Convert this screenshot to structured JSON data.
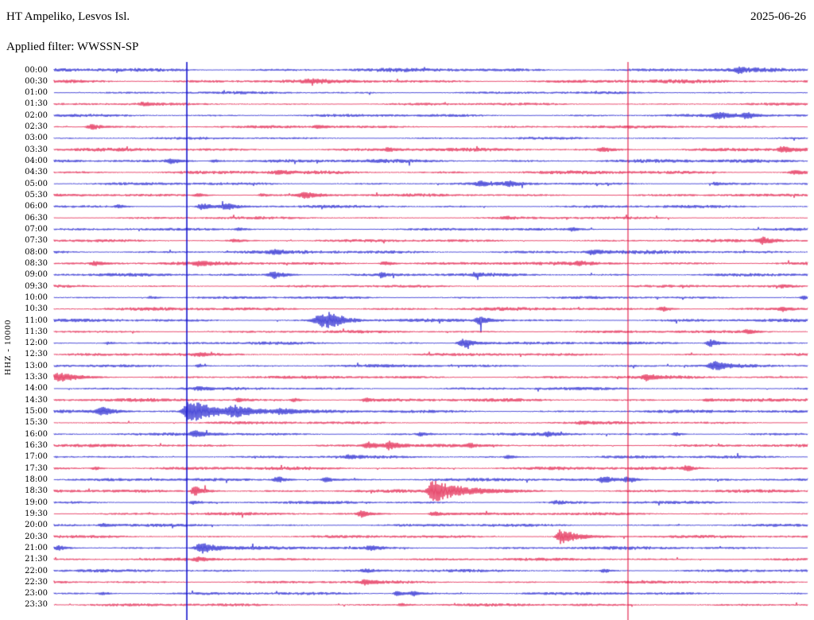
{
  "header": {
    "station_title": "HT Ampeliko, Lesvos Isl.",
    "filter_label": "Applied filter: WWSSN-SP",
    "date": "2025-06-26"
  },
  "side_label": "HHZ - 10000",
  "chart_data": {
    "type": "line",
    "subtype": "helicorder-seismogram",
    "title": "HT Ampeliko, Lesvos Isl.",
    "filter": "WWSSN-SP",
    "date": "2025-06-26",
    "channel_scale_label": "HHZ - 10000",
    "row_interval_minutes": 30,
    "colors": {
      "blue": "#1414cc",
      "red": "#e01240"
    },
    "vertical_markers": [
      {
        "t": 0.1762,
        "color": "#1414cc",
        "width": 1.6
      },
      {
        "t": 0.7616,
        "color": "#e01240",
        "width": 1.1
      }
    ],
    "rows": [
      {
        "time": "00:00",
        "color": "blue",
        "noise": 1.6,
        "events": [
          {
            "t": 0.909,
            "a": 3,
            "w": 5,
            "d": 10
          }
        ]
      },
      {
        "time": "00:30",
        "color": "red",
        "noise": 1.6,
        "events": [
          {
            "t": 0.34,
            "a": 1.5,
            "w": 8,
            "d": 14
          }
        ]
      },
      {
        "time": "01:00",
        "color": "blue",
        "noise": 1.1,
        "events": []
      },
      {
        "time": "01:30",
        "color": "red",
        "noise": 1.1,
        "events": [
          {
            "t": 0.118,
            "a": 2,
            "w": 5,
            "d": 10
          }
        ]
      },
      {
        "time": "02:00",
        "color": "blue",
        "noise": 1.2,
        "events": [
          {
            "t": 0.883,
            "a": 4,
            "w": 8,
            "d": 16
          },
          {
            "t": 0.92,
            "a": 3.5,
            "w": 6,
            "d": 12
          }
        ]
      },
      {
        "time": "02:30",
        "color": "red",
        "noise": 1.2,
        "events": [
          {
            "t": 0.05,
            "a": 4,
            "w": 6,
            "d": 14
          },
          {
            "t": 0.35,
            "a": 2,
            "w": 5,
            "d": 10
          }
        ]
      },
      {
        "time": "03:00",
        "color": "blue",
        "noise": 1.0,
        "events": []
      },
      {
        "time": "03:30",
        "color": "red",
        "noise": 1.4,
        "events": [
          {
            "t": 0.445,
            "a": 2,
            "w": 6,
            "d": 12
          },
          {
            "t": 0.73,
            "a": 2.5,
            "w": 8,
            "d": 14
          },
          {
            "t": 0.967,
            "a": 4,
            "w": 6,
            "d": 14
          }
        ]
      },
      {
        "time": "04:00",
        "color": "blue",
        "noise": 1.5,
        "events": [
          {
            "t": 0.155,
            "a": 3,
            "w": 6,
            "d": 14
          },
          {
            "t": 0.213,
            "a": 2,
            "w": 5,
            "d": 10
          }
        ]
      },
      {
        "time": "04:30",
        "color": "red",
        "noise": 1.5,
        "events": [
          {
            "t": 0.297,
            "a": 2,
            "w": 6,
            "d": 10
          },
          {
            "t": 0.983,
            "a": 2.5,
            "w": 6,
            "d": 12
          }
        ]
      },
      {
        "time": "05:00",
        "color": "blue",
        "noise": 1.2,
        "events": [
          {
            "t": 0.566,
            "a": 2.5,
            "w": 6,
            "d": 10
          },
          {
            "t": 0.603,
            "a": 3,
            "w": 6,
            "d": 12
          },
          {
            "t": 0.878,
            "a": 2,
            "w": 5,
            "d": 10
          }
        ]
      },
      {
        "time": "05:30",
        "color": "red",
        "noise": 1.2,
        "events": [
          {
            "t": 0.192,
            "a": 2,
            "w": 5,
            "d": 10
          },
          {
            "t": 0.276,
            "a": 2,
            "w": 5,
            "d": 10
          },
          {
            "t": 0.334,
            "a": 4,
            "w": 10,
            "d": 18
          }
        ]
      },
      {
        "time": "06:00",
        "color": "blue",
        "noise": 1.2,
        "events": [
          {
            "t": 0.086,
            "a": 2,
            "w": 5,
            "d": 10
          },
          {
            "t": 0.197,
            "a": 4,
            "w": 6,
            "d": 12
          },
          {
            "t": 0.229,
            "a": 4,
            "w": 6,
            "d": 12
          }
        ]
      },
      {
        "time": "06:30",
        "color": "red",
        "noise": 1.1,
        "events": [
          {
            "t": 0.6,
            "a": 1.5,
            "w": 6,
            "d": 10
          }
        ]
      },
      {
        "time": "07:00",
        "color": "blue",
        "noise": 1.1,
        "events": [
          {
            "t": 0.245,
            "a": 2,
            "w": 5,
            "d": 10
          },
          {
            "t": 0.688,
            "a": 2,
            "w": 5,
            "d": 10
          }
        ]
      },
      {
        "time": "07:30",
        "color": "red",
        "noise": 1.2,
        "events": [
          {
            "t": 0.239,
            "a": 2,
            "w": 5,
            "d": 10
          },
          {
            "t": 0.941,
            "a": 4,
            "w": 8,
            "d": 14
          }
        ]
      },
      {
        "time": "08:00",
        "color": "blue",
        "noise": 1.5,
        "events": [
          {
            "t": 0.292,
            "a": 2,
            "w": 5,
            "d": 10
          },
          {
            "t": 0.714,
            "a": 3,
            "w": 6,
            "d": 12
          }
        ]
      },
      {
        "time": "08:30",
        "color": "red",
        "noise": 1.5,
        "events": [
          {
            "t": 0.055,
            "a": 2.5,
            "w": 6,
            "d": 10
          },
          {
            "t": 0.192,
            "a": 2,
            "w": 5,
            "d": 10
          },
          {
            "t": 0.44,
            "a": 3,
            "w": 7,
            "d": 12
          },
          {
            "t": 0.698,
            "a": 2,
            "w": 5,
            "d": 10
          }
        ]
      },
      {
        "time": "09:00",
        "color": "blue",
        "noise": 1.3,
        "events": [
          {
            "t": 0.292,
            "a": 5,
            "w": 7,
            "d": 14
          },
          {
            "t": 0.435,
            "a": 4,
            "w": 3,
            "d": 6
          },
          {
            "t": 0.561,
            "a": 2,
            "w": 5,
            "d": 10
          }
        ]
      },
      {
        "time": "09:30",
        "color": "red",
        "noise": 1.1,
        "events": [
          {
            "t": 0.967,
            "a": 2,
            "w": 5,
            "d": 10
          }
        ]
      },
      {
        "time": "10:00",
        "color": "blue",
        "noise": 1.1,
        "events": [
          {
            "t": 0.129,
            "a": 2,
            "w": 5,
            "d": 10
          },
          {
            "t": 0.994,
            "a": 2.5,
            "w": 4,
            "d": 8
          }
        ]
      },
      {
        "time": "10:30",
        "color": "red",
        "noise": 1.4,
        "events": [
          {
            "t": 0.809,
            "a": 3,
            "w": 6,
            "d": 10
          },
          {
            "t": 0.967,
            "a": 2.5,
            "w": 5,
            "d": 10
          }
        ]
      },
      {
        "time": "11:00",
        "color": "blue",
        "noise": 1.3,
        "events": [
          {
            "t": 0.355,
            "a": 8,
            "w": 10,
            "d": 18
          },
          {
            "t": 0.368,
            "a": 7,
            "w": 6,
            "d": 14
          },
          {
            "t": 0.566,
            "a": 5,
            "w": 6,
            "d": 12
          }
        ]
      },
      {
        "time": "11:30",
        "color": "red",
        "noise": 1.2,
        "events": [
          {
            "t": 0.92,
            "a": 2.5,
            "w": 5,
            "d": 10
          }
        ]
      },
      {
        "time": "12:00",
        "color": "blue",
        "noise": 1.2,
        "events": [
          {
            "t": 0.071,
            "a": 2,
            "w": 5,
            "d": 10
          },
          {
            "t": 0.545,
            "a": 6,
            "w": 8,
            "d": 14
          },
          {
            "t": 0.872,
            "a": 5,
            "w": 6,
            "d": 12
          }
        ]
      },
      {
        "time": "12:30",
        "color": "red",
        "noise": 1.2,
        "events": [
          {
            "t": 0.192,
            "a": 2,
            "w": 5,
            "d": 10
          }
        ]
      },
      {
        "time": "13:00",
        "color": "blue",
        "noise": 1.2,
        "events": [
          {
            "t": 0.192,
            "a": 2,
            "w": 5,
            "d": 10
          },
          {
            "t": 0.878,
            "a": 5,
            "w": 8,
            "d": 14
          }
        ]
      },
      {
        "time": "13:30",
        "color": "red",
        "noise": 1.3,
        "events": [
          {
            "t": 0.007,
            "a": 5,
            "w": 14,
            "d": 26
          },
          {
            "t": 0.788,
            "a": 4,
            "w": 7,
            "d": 12
          }
        ]
      },
      {
        "time": "14:00",
        "color": "blue",
        "noise": 1.2,
        "events": [
          {
            "t": 0.192,
            "a": 2,
            "w": 5,
            "d": 10
          }
        ]
      },
      {
        "time": "14:30",
        "color": "red",
        "noise": 1.4,
        "events": [
          {
            "t": 0.245,
            "a": 2,
            "w": 5,
            "d": 10
          },
          {
            "t": 0.319,
            "a": 2,
            "w": 5,
            "d": 10
          },
          {
            "t": 0.414,
            "a": 2,
            "w": 5,
            "d": 10
          },
          {
            "t": 0.867,
            "a": 2,
            "w": 5,
            "d": 10
          }
        ]
      },
      {
        "time": "15:00",
        "color": "blue",
        "noise": 1.3,
        "events": [
          {
            "t": 0.065,
            "a": 5,
            "w": 8,
            "d": 14
          },
          {
            "t": 0.181,
            "a": 16,
            "w": 8,
            "d": 30
          },
          {
            "t": 0.24,
            "a": 6,
            "w": 10,
            "d": 30
          },
          {
            "t": 0.3,
            "a": 3,
            "w": 8,
            "d": 20
          }
        ]
      },
      {
        "time": "15:30",
        "color": "red",
        "noise": 1.2,
        "events": [
          {
            "t": 0.7,
            "a": 1.5,
            "w": 6,
            "d": 10
          }
        ]
      },
      {
        "time": "16:00",
        "color": "blue",
        "noise": 1.2,
        "events": [
          {
            "t": 0.187,
            "a": 4,
            "w": 6,
            "d": 14
          },
          {
            "t": 0.487,
            "a": 2,
            "w": 5,
            "d": 10
          },
          {
            "t": 0.656,
            "a": 2,
            "w": 5,
            "d": 10
          },
          {
            "t": 0.825,
            "a": 2,
            "w": 5,
            "d": 10
          }
        ]
      },
      {
        "time": "16:30",
        "color": "red",
        "noise": 1.2,
        "events": [
          {
            "t": 0.419,
            "a": 4,
            "w": 8,
            "d": 12
          },
          {
            "t": 0.445,
            "a": 5,
            "w": 6,
            "d": 12
          },
          {
            "t": 0.551,
            "a": 2,
            "w": 5,
            "d": 10
          }
        ]
      },
      {
        "time": "17:00",
        "color": "blue",
        "noise": 1.2,
        "events": [
          {
            "t": 0.392,
            "a": 2,
            "w": 5,
            "d": 10
          },
          {
            "t": 0.603,
            "a": 2,
            "w": 5,
            "d": 10
          }
        ]
      },
      {
        "time": "17:30",
        "color": "red",
        "noise": 1.4,
        "events": [
          {
            "t": 0.055,
            "a": 2,
            "w": 5,
            "d": 10
          },
          {
            "t": 0.841,
            "a": 3,
            "w": 6,
            "d": 10
          }
        ]
      },
      {
        "time": "18:00",
        "color": "blue",
        "noise": 1.3,
        "events": [
          {
            "t": 0.297,
            "a": 4,
            "w": 6,
            "d": 12
          },
          {
            "t": 0.361,
            "a": 3,
            "w": 5,
            "d": 10
          },
          {
            "t": 0.73,
            "a": 4,
            "w": 6,
            "d": 12
          },
          {
            "t": 0.762,
            "a": 4,
            "w": 6,
            "d": 12
          }
        ]
      },
      {
        "time": "18:30",
        "color": "red",
        "noise": 1.3,
        "events": [
          {
            "t": 0.187,
            "a": 6,
            "w": 5,
            "d": 14
          },
          {
            "t": 0.503,
            "a": 14,
            "w": 6,
            "d": 35
          }
        ]
      },
      {
        "time": "19:00",
        "color": "blue",
        "noise": 1.2,
        "events": [
          {
            "t": 0.185,
            "a": 2,
            "w": 4,
            "d": 8
          },
          {
            "t": 0.667,
            "a": 2,
            "w": 5,
            "d": 10
          }
        ]
      },
      {
        "time": "19:30",
        "color": "red",
        "noise": 1.2,
        "events": [
          {
            "t": 0.408,
            "a": 4,
            "w": 5,
            "d": 12
          },
          {
            "t": 0.503,
            "a": 3,
            "w": 6,
            "d": 20
          }
        ]
      },
      {
        "time": "20:00",
        "color": "blue",
        "noise": 1.2,
        "events": [
          {
            "t": 0.065,
            "a": 2,
            "w": 5,
            "d": 10
          }
        ]
      },
      {
        "time": "20:30",
        "color": "red",
        "noise": 1.2,
        "events": [
          {
            "t": 0.672,
            "a": 9,
            "w": 5,
            "d": 22
          }
        ]
      },
      {
        "time": "21:00",
        "color": "blue",
        "noise": 1.3,
        "events": [
          {
            "t": 0.007,
            "a": 3,
            "w": 6,
            "d": 10
          },
          {
            "t": 0.197,
            "a": 7,
            "w": 9,
            "d": 18
          },
          {
            "t": 0.419,
            "a": 3,
            "w": 5,
            "d": 10
          }
        ]
      },
      {
        "time": "21:30",
        "color": "red",
        "noise": 1.2,
        "events": [
          {
            "t": 0.192,
            "a": 2,
            "w": 5,
            "d": 10
          }
        ]
      },
      {
        "time": "22:00",
        "color": "blue",
        "noise": 1.2,
        "events": [
          {
            "t": 0.414,
            "a": 2,
            "w": 5,
            "d": 10
          },
          {
            "t": 0.73,
            "a": 2,
            "w": 5,
            "d": 10
          }
        ]
      },
      {
        "time": "22:30",
        "color": "red",
        "noise": 1.2,
        "events": [
          {
            "t": 0.414,
            "a": 3,
            "w": 6,
            "d": 10
          }
        ]
      },
      {
        "time": "23:00",
        "color": "blue",
        "noise": 1.2,
        "events": [
          {
            "t": 0.065,
            "a": 2,
            "w": 5,
            "d": 10
          },
          {
            "t": 0.456,
            "a": 3,
            "w": 5,
            "d": 10
          },
          {
            "t": 0.477,
            "a": 3,
            "w": 5,
            "d": 10
          }
        ]
      },
      {
        "time": "23:30",
        "color": "red",
        "noise": 1.2,
        "events": [
          {
            "t": 0.461,
            "a": 2,
            "w": 5,
            "d": 10
          }
        ]
      }
    ]
  }
}
